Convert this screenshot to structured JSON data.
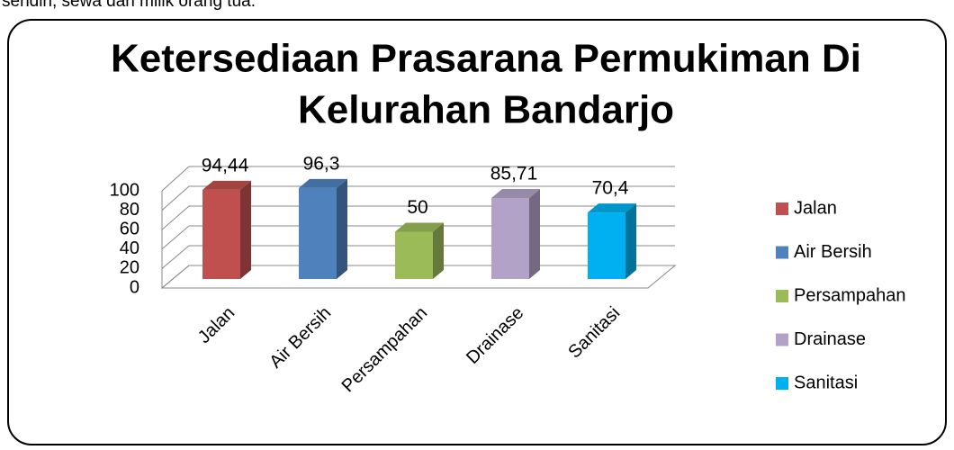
{
  "page_text_above": "sendiri, sewa dan milik orang tua.",
  "chart_data": {
    "type": "bar3d",
    "title_lines": [
      "Ketersediaan Prasarana Permukiman Di",
      "Kelurahan Bandarjo"
    ],
    "categories": [
      "Jalan",
      "Air Bersih",
      "Persampahan",
      "Drainase",
      "Sanitasi"
    ],
    "values": [
      94.44,
      96.3,
      50,
      85.71,
      70.4
    ],
    "value_labels": [
      "94,44",
      "96,3",
      "50",
      "85,71",
      "70,4"
    ],
    "colors": [
      "#c0504d",
      "#4f81bd",
      "#9bbb59",
      "#b3a2c7",
      "#00b0f0"
    ],
    "ylim": [
      0,
      100
    ],
    "yticks": [
      0,
      20,
      40,
      60,
      80,
      100
    ],
    "grid": true,
    "legend": "right"
  }
}
